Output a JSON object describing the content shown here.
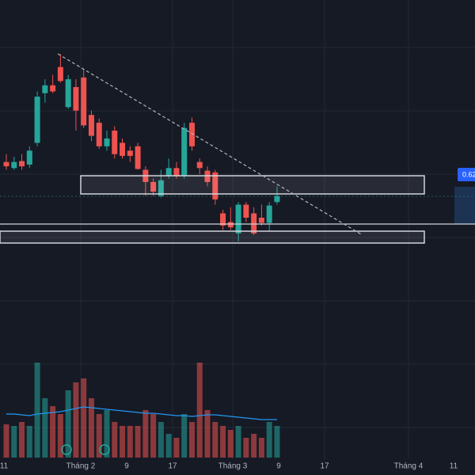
{
  "chart_data": {
    "type": "candlestick",
    "price_label": "0.62",
    "ylim": [
      0.42,
      0.82
    ],
    "x_labels": [
      "11",
      "Tháng 2",
      "9",
      "17",
      "Tháng 3",
      "9",
      "17",
      "Tháng 4",
      "11"
    ],
    "up_color": "#26a69a",
    "down_color": "#ef5350",
    "open": [
      0.634,
      0.627,
      0.635,
      0.631,
      0.656,
      0.713,
      0.722,
      0.743,
      0.697,
      0.72,
      0.731,
      0.688,
      0.679,
      0.652,
      0.67,
      0.656,
      0.647,
      0.652,
      0.625,
      0.611,
      0.595,
      0.618,
      0.627,
      0.618,
      0.679,
      0.634,
      0.624,
      0.622,
      0.575,
      0.565,
      0.552,
      0.585,
      0.575,
      0.57,
      0.564,
      0.588
    ],
    "close": [
      0.629,
      0.634,
      0.629,
      0.647,
      0.709,
      0.722,
      0.715,
      0.727,
      0.729,
      0.693,
      0.676,
      0.664,
      0.652,
      0.661,
      0.643,
      0.641,
      0.641,
      0.626,
      0.611,
      0.6,
      0.613,
      0.627,
      0.618,
      0.673,
      0.652,
      0.627,
      0.611,
      0.591,
      0.561,
      0.559,
      0.585,
      0.57,
      0.552,
      0.564,
      0.584,
      0.595
    ],
    "high": [
      0.643,
      0.64,
      0.643,
      0.652,
      0.715,
      0.729,
      0.734,
      0.758,
      0.734,
      0.729,
      0.74,
      0.693,
      0.684,
      0.67,
      0.675,
      0.661,
      0.652,
      0.656,
      0.629,
      0.615,
      0.625,
      0.638,
      0.634,
      0.679,
      0.685,
      0.638,
      0.629,
      0.625,
      0.579,
      0.582,
      0.588,
      0.588,
      0.582,
      0.585,
      0.588,
      0.606
    ],
    "low": [
      0.625,
      0.625,
      0.625,
      0.627,
      0.652,
      0.702,
      0.713,
      0.725,
      0.695,
      0.67,
      0.673,
      0.658,
      0.649,
      0.647,
      0.638,
      0.638,
      0.634,
      0.625,
      0.595,
      0.595,
      0.593,
      0.615,
      0.615,
      0.615,
      0.647,
      0.62,
      0.606,
      0.585,
      0.556,
      0.556,
      0.543,
      0.565,
      0.55,
      0.561,
      0.555,
      0.585
    ],
    "volume": [
      42,
      40,
      45,
      40,
      120,
      75,
      65,
      55,
      85,
      95,
      100,
      75,
      55,
      60,
      45,
      40,
      40,
      40,
      60,
      55,
      45,
      30,
      25,
      55,
      45,
      120,
      60,
      45,
      40,
      35,
      40,
      25,
      30,
      25,
      45,
      40
    ],
    "volume_ma": [
      55,
      55,
      54,
      53,
      55,
      56,
      57,
      58,
      60,
      62,
      64,
      63,
      62,
      61,
      60,
      59,
      58,
      57,
      56,
      56,
      55,
      54,
      53,
      53,
      52,
      53,
      54,
      54,
      53,
      52,
      51,
      50,
      49,
      48,
      48,
      48
    ],
    "vlim": [
      0,
      130
    ]
  }
}
